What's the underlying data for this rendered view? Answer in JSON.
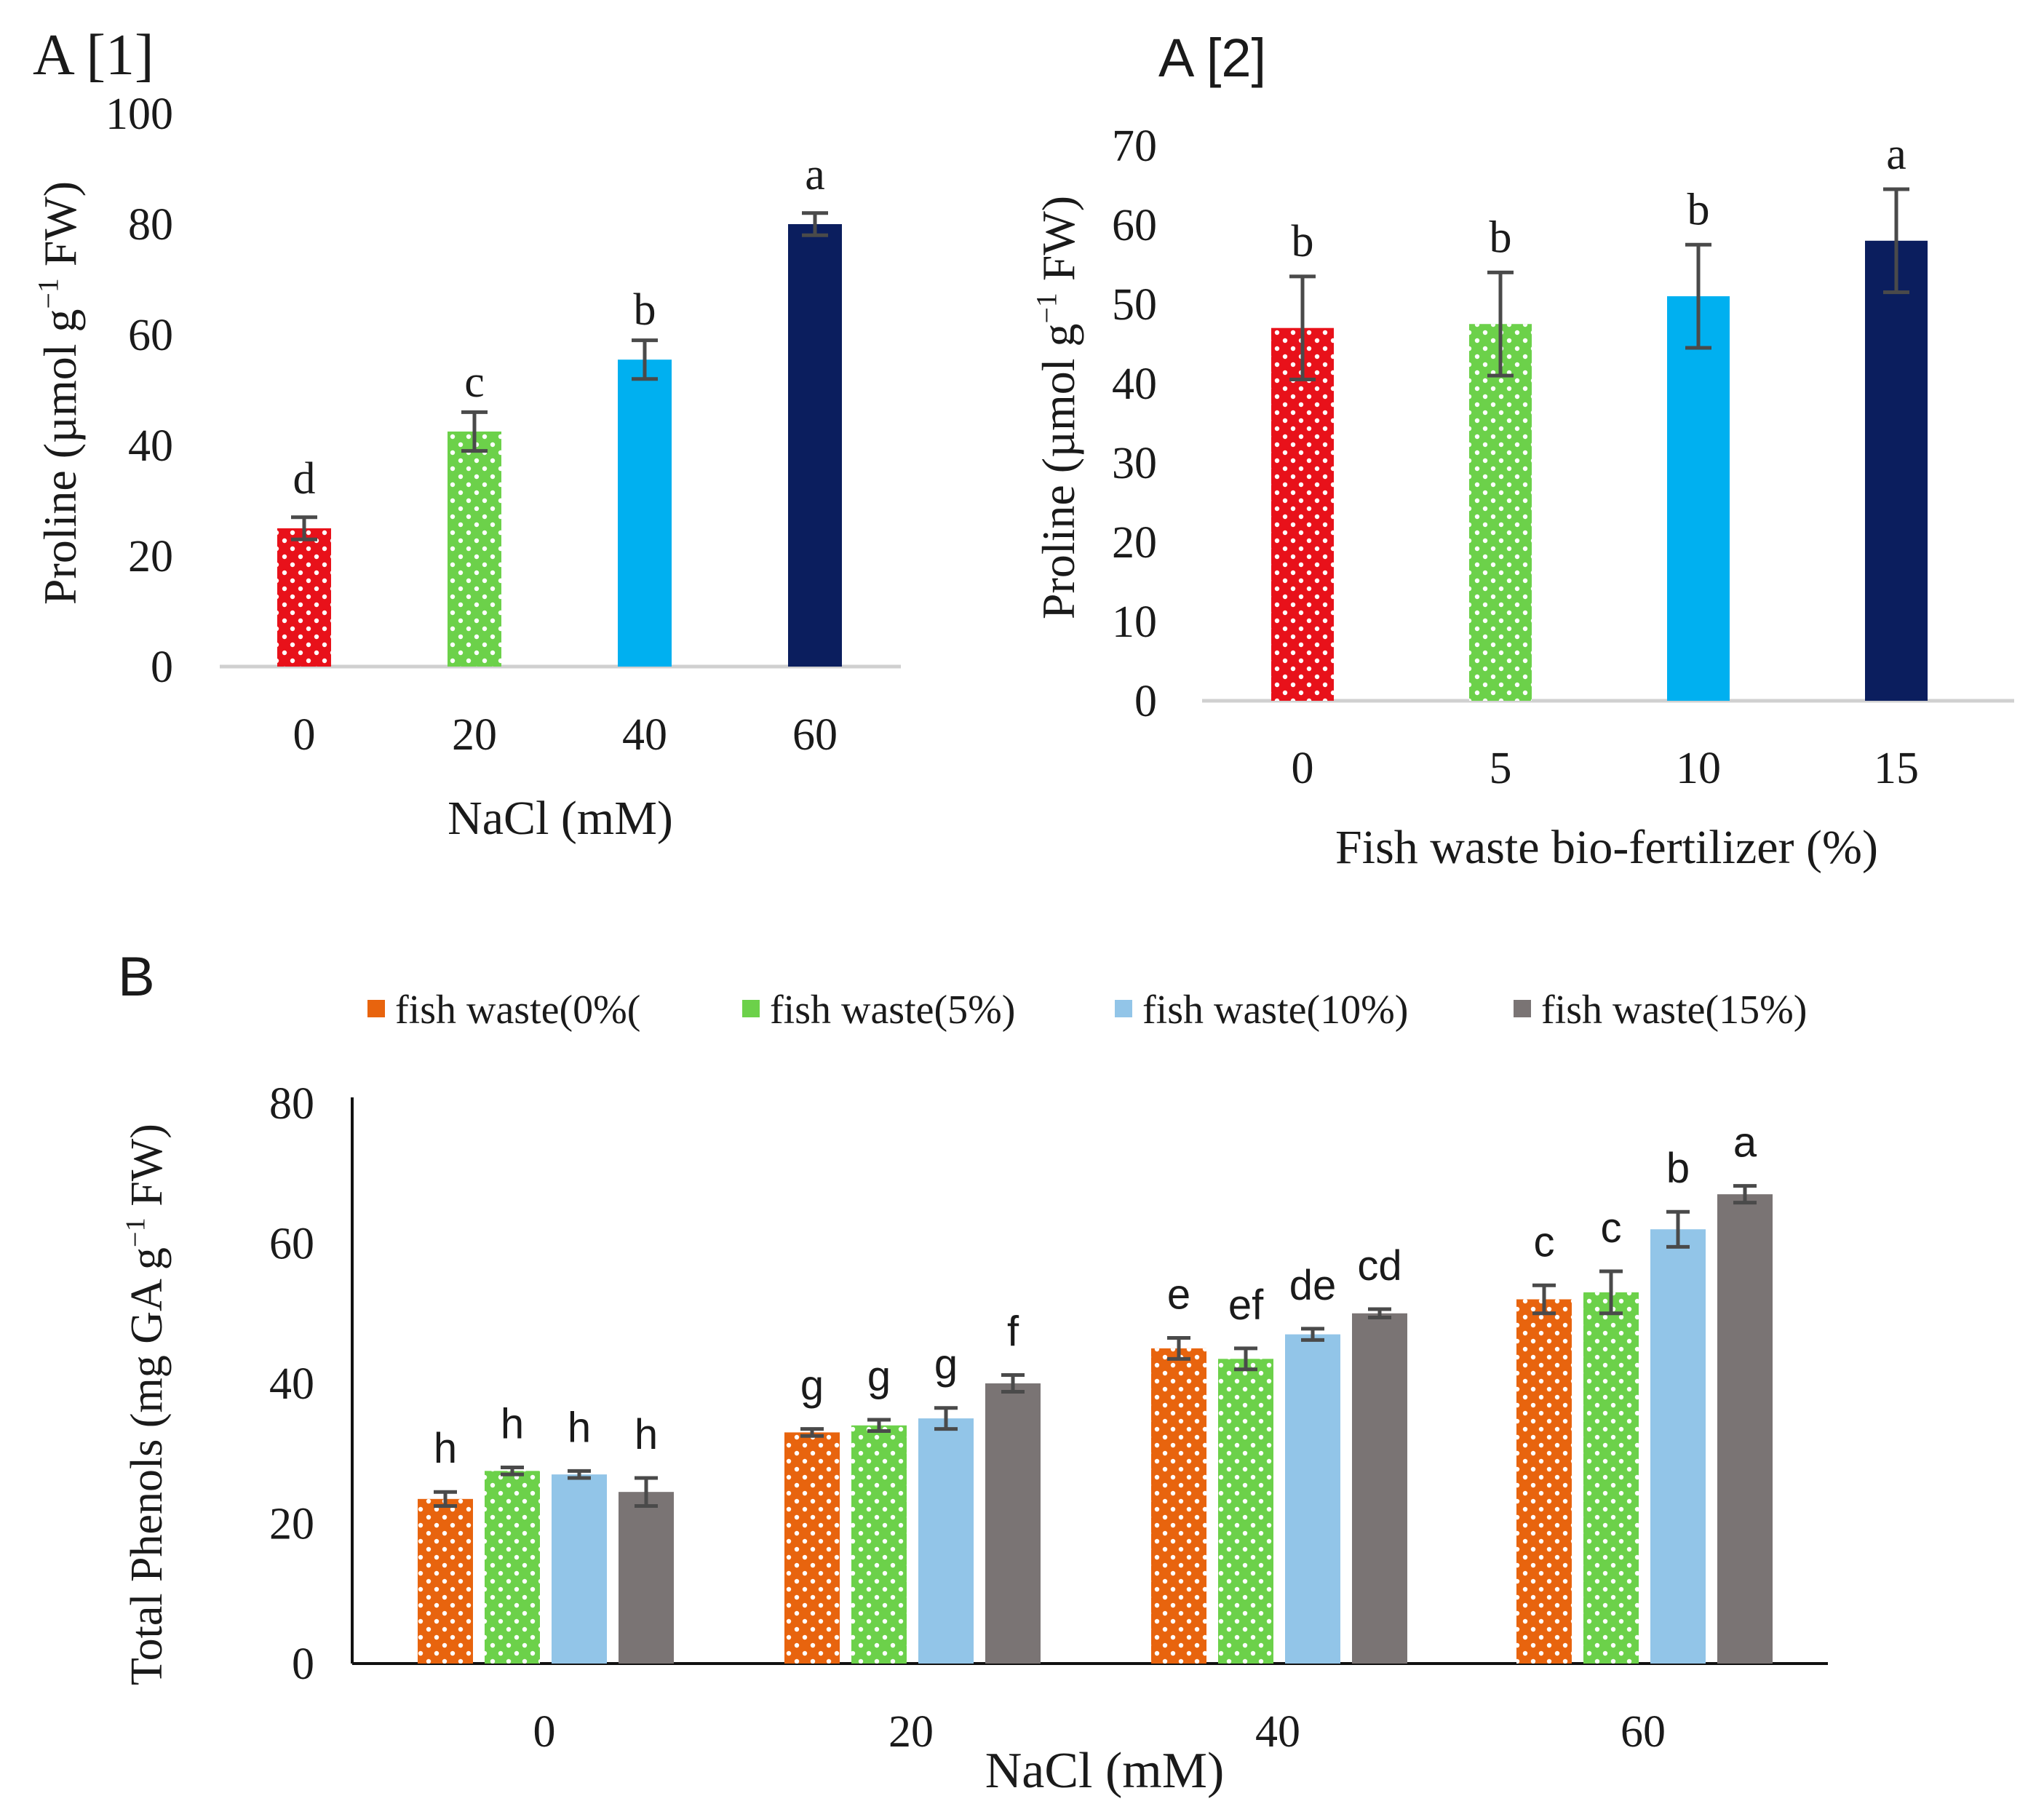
{
  "colors": {
    "red": "#e8111a",
    "green": "#6cd14a",
    "lightblue": "#00b0f0",
    "navy": "#0b1e5e",
    "orange": "#e8640e",
    "skyblue": "#92c5e8",
    "gray": "#7a7474",
    "errorbar": "#4a4a4a",
    "axis": "#d0d0d0"
  },
  "chart_data": [
    {
      "id": "A1",
      "type": "bar",
      "panel_label": "A [1]",
      "title": "",
      "xlabel": "NaCl (mM)",
      "ylabel_main": "Proline (µmol g",
      "ylabel_sup": "−1",
      "ylabel_tail": " FW)",
      "categories": [
        "0",
        "20",
        "40",
        "60"
      ],
      "values": [
        25,
        42.5,
        55.5,
        80
      ],
      "errors": [
        2,
        3.5,
        3.5,
        2
      ],
      "letters": [
        "d",
        "c",
        "b",
        "a"
      ],
      "bar_colors": [
        "red",
        "green",
        "lightblue",
        "navy"
      ],
      "dotted": [
        true,
        true,
        false,
        false
      ],
      "ylim": [
        0,
        100
      ],
      "yticks": [
        0,
        20,
        40,
        60,
        80,
        100
      ],
      "grid": false
    },
    {
      "id": "A2",
      "type": "bar",
      "panel_label": "A [2]",
      "title": "",
      "xlabel": "Fish waste bio-fertilizer (%)",
      "ylabel_main": "Proline (µmol g",
      "ylabel_sup": "−1",
      "ylabel_tail": " FW)",
      "categories": [
        "0",
        "5",
        "10",
        "15"
      ],
      "values": [
        47,
        47.5,
        51,
        58
      ],
      "errors": [
        6.5,
        6.5,
        6.5,
        6.5
      ],
      "letters": [
        "b",
        "b",
        "b",
        "a"
      ],
      "bar_colors": [
        "red",
        "green",
        "lightblue",
        "navy"
      ],
      "dotted": [
        true,
        true,
        false,
        false
      ],
      "ylim": [
        0,
        70
      ],
      "yticks": [
        0,
        10,
        20,
        30,
        40,
        50,
        60,
        70
      ],
      "grid": false
    },
    {
      "id": "B",
      "type": "bar",
      "panel_label": "B",
      "title": "",
      "xlabel": "NaCl (mM)",
      "ylabel_main": "Total Phenols (mg GA g",
      "ylabel_sup": "−1",
      "ylabel_tail": " FW)",
      "categories": [
        "0",
        "20",
        "40",
        "60"
      ],
      "series": [
        {
          "name": "fish waste(0%(",
          "color": "orange",
          "dotted": true,
          "values": [
            23.5,
            33,
            45,
            52
          ],
          "errors": [
            1,
            0.5,
            1.5,
            2
          ],
          "letters": [
            "h",
            "g",
            "e",
            "c"
          ]
        },
        {
          "name": "fish waste(5%)",
          "color": "green",
          "dotted": true,
          "values": [
            27.5,
            34,
            43.5,
            53
          ],
          "errors": [
            0.5,
            0.8,
            1.5,
            3
          ],
          "letters": [
            "h",
            "g",
            "ef",
            "c"
          ]
        },
        {
          "name": "fish waste(10%)",
          "color": "skyblue",
          "dotted": false,
          "values": [
            27,
            35,
            47,
            62
          ],
          "errors": [
            0.5,
            1.5,
            0.8,
            2.5
          ],
          "letters": [
            "h",
            "g",
            "de",
            "b"
          ]
        },
        {
          "name": "fish waste(15%)",
          "color": "gray",
          "dotted": false,
          "values": [
            24.5,
            40,
            50,
            67
          ],
          "errors": [
            2,
            1.2,
            0.6,
            1.2
          ],
          "letters": [
            "h",
            "f",
            "cd",
            "a"
          ]
        }
      ],
      "ylim": [
        0,
        80
      ],
      "yticks": [
        0,
        20,
        40,
        60,
        80
      ],
      "legend_position": "top",
      "grid": false
    }
  ]
}
